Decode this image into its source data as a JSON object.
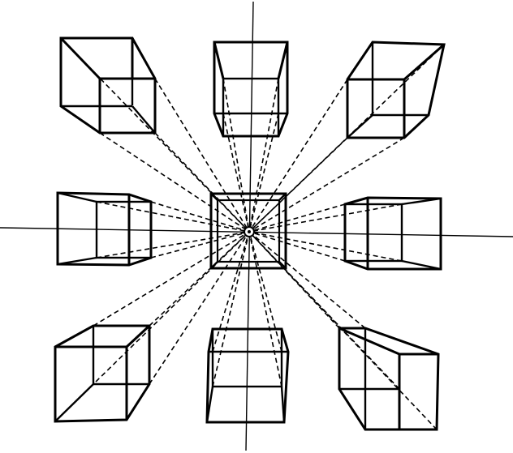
{
  "diagram": {
    "vanishing_point": "center",
    "cube_count": 8,
    "cubes": [
      {
        "id": "top-left"
      },
      {
        "id": "top-center"
      },
      {
        "id": "top-right"
      },
      {
        "id": "middle-left"
      },
      {
        "id": "middle-right"
      },
      {
        "id": "bottom-left"
      },
      {
        "id": "bottom-center"
      },
      {
        "id": "bottom-right"
      }
    ]
  }
}
